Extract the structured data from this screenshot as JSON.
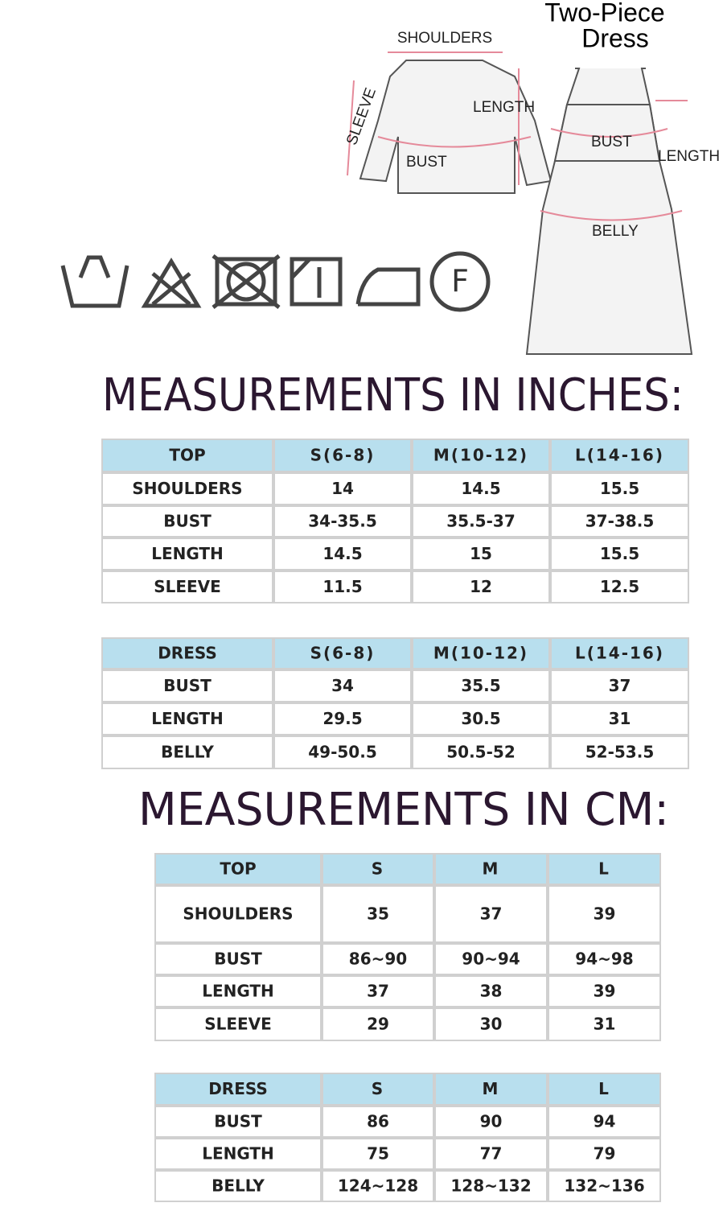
{
  "diagram": {
    "title_lines": [
      "Two-Piece",
      "Dress"
    ],
    "top_labels": {
      "shoulders": "SHOULDERS",
      "length": "LENGTH",
      "sleeve": "SLEEVE",
      "bust": "BUST"
    },
    "dress_labels": {
      "bust": "BUST",
      "length": "LENGTH",
      "belly": "BELLY"
    },
    "care_label": "F"
  },
  "headings": [
    "MEASUREMENTS IN INCHES:",
    "MEASUREMENTS IN CM:"
  ],
  "tables": [
    {
      "header": [
        "TOP",
        "S(6-8)",
        "M(10-12)",
        "L(14-16)"
      ],
      "rows": [
        [
          "SHOULDERS",
          "14",
          "14.5",
          "15.5"
        ],
        [
          "BUST",
          "34-35.5",
          "35.5-37",
          "37-38.5"
        ],
        [
          "LENGTH",
          "14.5",
          "15",
          "15.5"
        ],
        [
          "SLEEVE",
          "11.5",
          "12",
          "12.5"
        ]
      ]
    },
    {
      "header": [
        "DRESS",
        "S(6-8)",
        "M(10-12)",
        "L(14-16)"
      ],
      "rows": [
        [
          "BUST",
          "34",
          "35.5",
          "37"
        ],
        [
          "LENGTH",
          "29.5",
          "30.5",
          "31"
        ],
        [
          "BELLY",
          "49-50.5",
          "50.5-52",
          "52-53.5"
        ]
      ]
    },
    {
      "header": [
        "TOP",
        "S",
        "M",
        "L"
      ],
      "rows": [
        [
          "SHOULDERS",
          "35",
          "37",
          "39"
        ],
        [
          "BUST",
          "86~90",
          "90~94",
          "94~98"
        ],
        [
          "LENGTH",
          "37",
          "38",
          "39"
        ],
        [
          "SLEEVE",
          "29",
          "30",
          "31"
        ]
      ]
    },
    {
      "header": [
        "DRESS",
        "S",
        "M",
        "L"
      ],
      "rows": [
        [
          "BUST",
          "86",
          "90",
          "94"
        ],
        [
          "LENGTH",
          "75",
          "77",
          "79"
        ],
        [
          "BELLY",
          "124~128",
          "128~132",
          "132~136"
        ]
      ]
    }
  ]
}
